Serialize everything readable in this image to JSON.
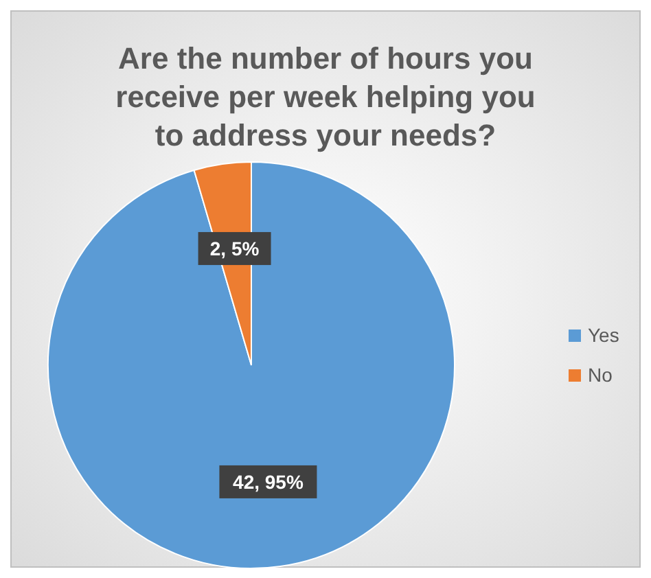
{
  "chart_data": {
    "type": "pie",
    "title": "Are the number of hours you receive per week helping you to address your needs?",
    "categories": [
      "Yes",
      "No"
    ],
    "values": [
      42,
      2
    ],
    "colors": [
      "#5b9bd5",
      "#ed7d31"
    ],
    "value_labels": [
      "42, 95%",
      "2, 5%"
    ],
    "legend": "right"
  }
}
